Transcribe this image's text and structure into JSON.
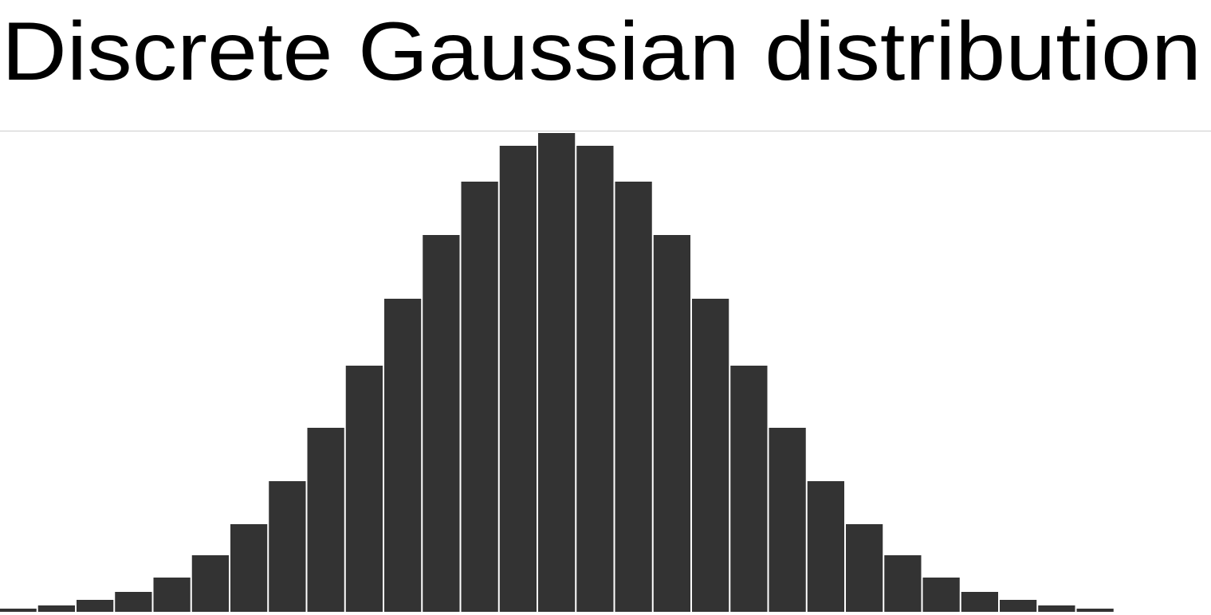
{
  "chart_data": {
    "type": "bar",
    "title": "Discrete Gaussian distribution",
    "values": [
      4,
      8,
      15,
      25,
      43,
      71,
      110,
      164,
      231,
      309,
      393,
      473,
      540,
      585,
      601,
      585,
      540,
      473,
      393,
      309,
      231,
      164,
      110,
      71,
      43,
      25,
      15,
      8,
      4
    ],
    "color": "#333333",
    "ylim": [
      0,
      604
    ]
  }
}
